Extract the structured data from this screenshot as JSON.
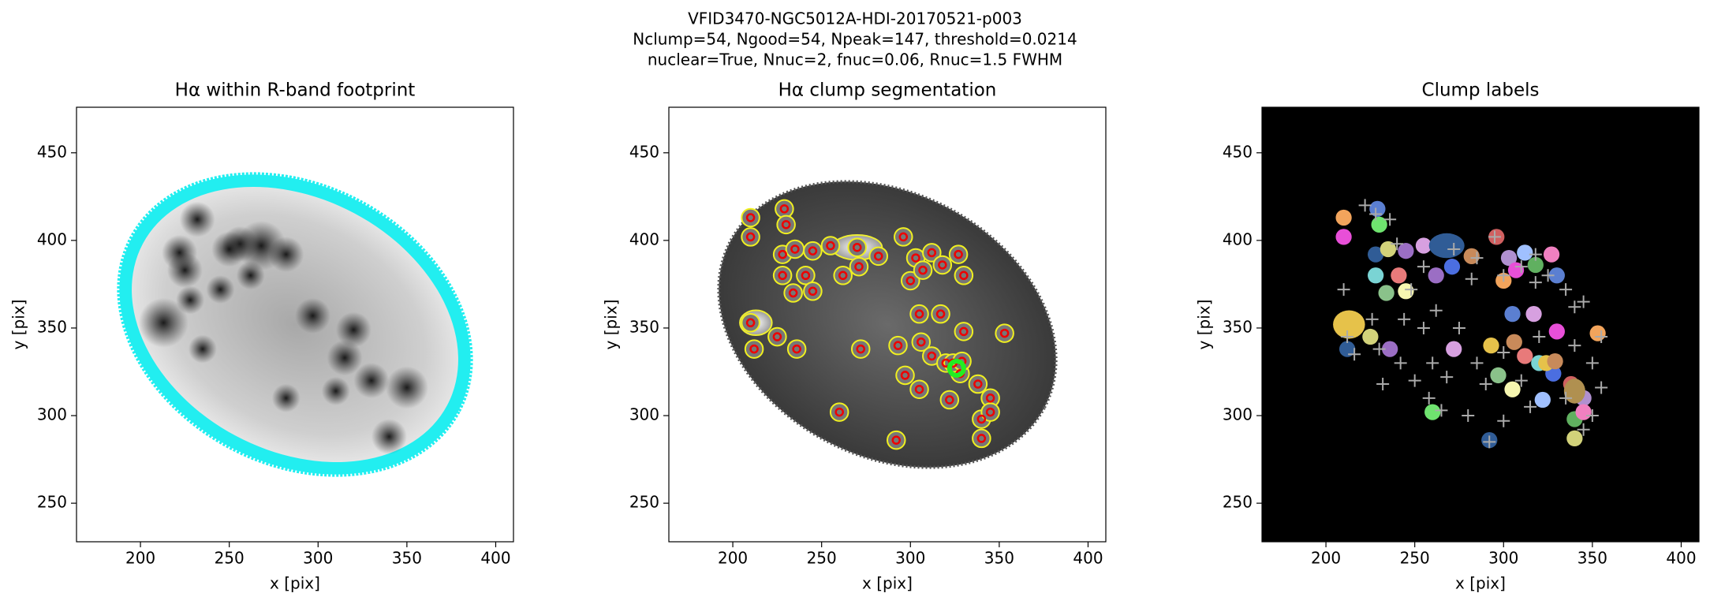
{
  "figure": {
    "title_lines": [
      "VFID3470-NGC5012A-HDI-20170521-p003",
      "Nclump=54, Ngood=54, Npeak=147, threshold=0.0214",
      "nuclear=True, Nnuc=2, fnuc=0.06, Rnuc=1.5 FWHM"
    ]
  },
  "chart_data": [
    {
      "type": "image",
      "title": "Hα within R-band footprint",
      "xlabel": "x [pix]",
      "ylabel": "y [pix]",
      "xlim": [
        164,
        410
      ],
      "ylim": [
        228,
        476
      ],
      "xticks": [
        200,
        250,
        300,
        350,
        400
      ],
      "yticks": [
        250,
        300,
        350,
        400,
        450
      ]
    },
    {
      "type": "image",
      "title": "Hα clump segmentation",
      "xlabel": "x [pix]",
      "ylabel": "y [pix]",
      "xlim": [
        164,
        410
      ],
      "ylim": [
        228,
        476
      ],
      "xticks": [
        200,
        250,
        300,
        350,
        400
      ],
      "yticks": [
        250,
        300,
        350,
        400,
        450
      ]
    },
    {
      "type": "image",
      "title": "Clump labels",
      "xlabel": "x [pix]",
      "ylabel": "y [pix]",
      "xlim": [
        164,
        410
      ],
      "ylim": [
        228,
        476
      ],
      "xticks": [
        200,
        250,
        300,
        350,
        400
      ],
      "yticks": [
        250,
        300,
        350,
        400,
        450
      ]
    }
  ]
}
